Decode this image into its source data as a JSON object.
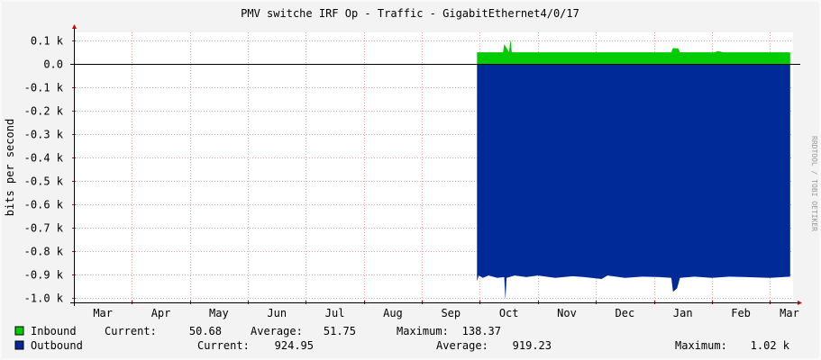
{
  "chart_data": {
    "type": "area",
    "title": "PMV switche IRF Op - Traffic - GigabitEthernet4/0/17",
    "ylabel": "bits per second",
    "watermark": "RRDTOOL / TOBI OETIKER",
    "x_ticks": [
      "Mar",
      "Apr",
      "May",
      "Jun",
      "Jul",
      "Aug",
      "Sep",
      "Oct",
      "Nov",
      "Dec",
      "Jan",
      "Feb",
      "Mar"
    ],
    "y_ticks": [
      {
        "value": 100,
        "label": "0.1 k"
      },
      {
        "value": 0,
        "label": "0.0"
      },
      {
        "value": -100,
        "label": "-0.1 k"
      },
      {
        "value": -200,
        "label": "-0.2 k"
      },
      {
        "value": -300,
        "label": "-0.3 k"
      },
      {
        "value": -400,
        "label": "-0.4 k"
      },
      {
        "value": -500,
        "label": "-0.5 k"
      },
      {
        "value": -600,
        "label": "-0.6 k"
      },
      {
        "value": -700,
        "label": "-0.7 k"
      },
      {
        "value": -800,
        "label": "-0.8 k"
      },
      {
        "value": -900,
        "label": "-0.9 k"
      },
      {
        "value": -1000,
        "label": "-1.0 k"
      }
    ],
    "ylim": [
      -1020,
      135
    ],
    "xlim": [
      0,
      12.4
    ],
    "grid": true,
    "series": [
      {
        "name": "Inbound",
        "color": "#00cc00",
        "points": [
          [
            6.95,
            50
          ],
          [
            7.4,
            50
          ],
          [
            7.42,
            85
          ],
          [
            7.48,
            60
          ],
          [
            7.5,
            50
          ],
          [
            7.53,
            105
          ],
          [
            7.55,
            50
          ],
          [
            10.3,
            50
          ],
          [
            10.33,
            68
          ],
          [
            10.42,
            66
          ],
          [
            10.45,
            50
          ],
          [
            11.05,
            50
          ],
          [
            11.1,
            55
          ],
          [
            11.2,
            50
          ],
          [
            12.35,
            50
          ]
        ],
        "current": "50.68",
        "average": "51.75",
        "maximum": "138.37"
      },
      {
        "name": "Outbound",
        "color": "#002a97",
        "points": [
          [
            6.95,
            -930
          ],
          [
            6.98,
            -905
          ],
          [
            7.05,
            -915
          ],
          [
            7.15,
            -905
          ],
          [
            7.3,
            -915
          ],
          [
            7.42,
            -912
          ],
          [
            7.44,
            -1010
          ],
          [
            7.46,
            -915
          ],
          [
            7.6,
            -905
          ],
          [
            7.8,
            -912
          ],
          [
            8.0,
            -905
          ],
          [
            8.3,
            -915
          ],
          [
            8.6,
            -908
          ],
          [
            8.8,
            -912
          ],
          [
            9.1,
            -920
          ],
          [
            9.2,
            -905
          ],
          [
            9.5,
            -915
          ],
          [
            9.8,
            -910
          ],
          [
            10.1,
            -912
          ],
          [
            10.3,
            -915
          ],
          [
            10.33,
            -975
          ],
          [
            10.4,
            -960
          ],
          [
            10.45,
            -915
          ],
          [
            10.7,
            -910
          ],
          [
            11.0,
            -915
          ],
          [
            11.3,
            -910
          ],
          [
            11.6,
            -912
          ],
          [
            12.0,
            -915
          ],
          [
            12.35,
            -910
          ]
        ],
        "current": "924.95",
        "average": "919.23",
        "maximum": "1.02 k"
      }
    ]
  },
  "legend": {
    "inbound": {
      "name": "Inbound",
      "current_label": "Current:",
      "current": "50.68",
      "average_label": "Average:",
      "average": "51.75",
      "maximum_label": "Maximum:",
      "maximum": "138.37"
    },
    "outbound": {
      "name": "Outbound",
      "current_label": "Current:",
      "current": "924.95",
      "average_label": "Average:",
      "average": "919.23",
      "maximum_label": "Maximum:",
      "maximum": "1.02 k"
    }
  }
}
